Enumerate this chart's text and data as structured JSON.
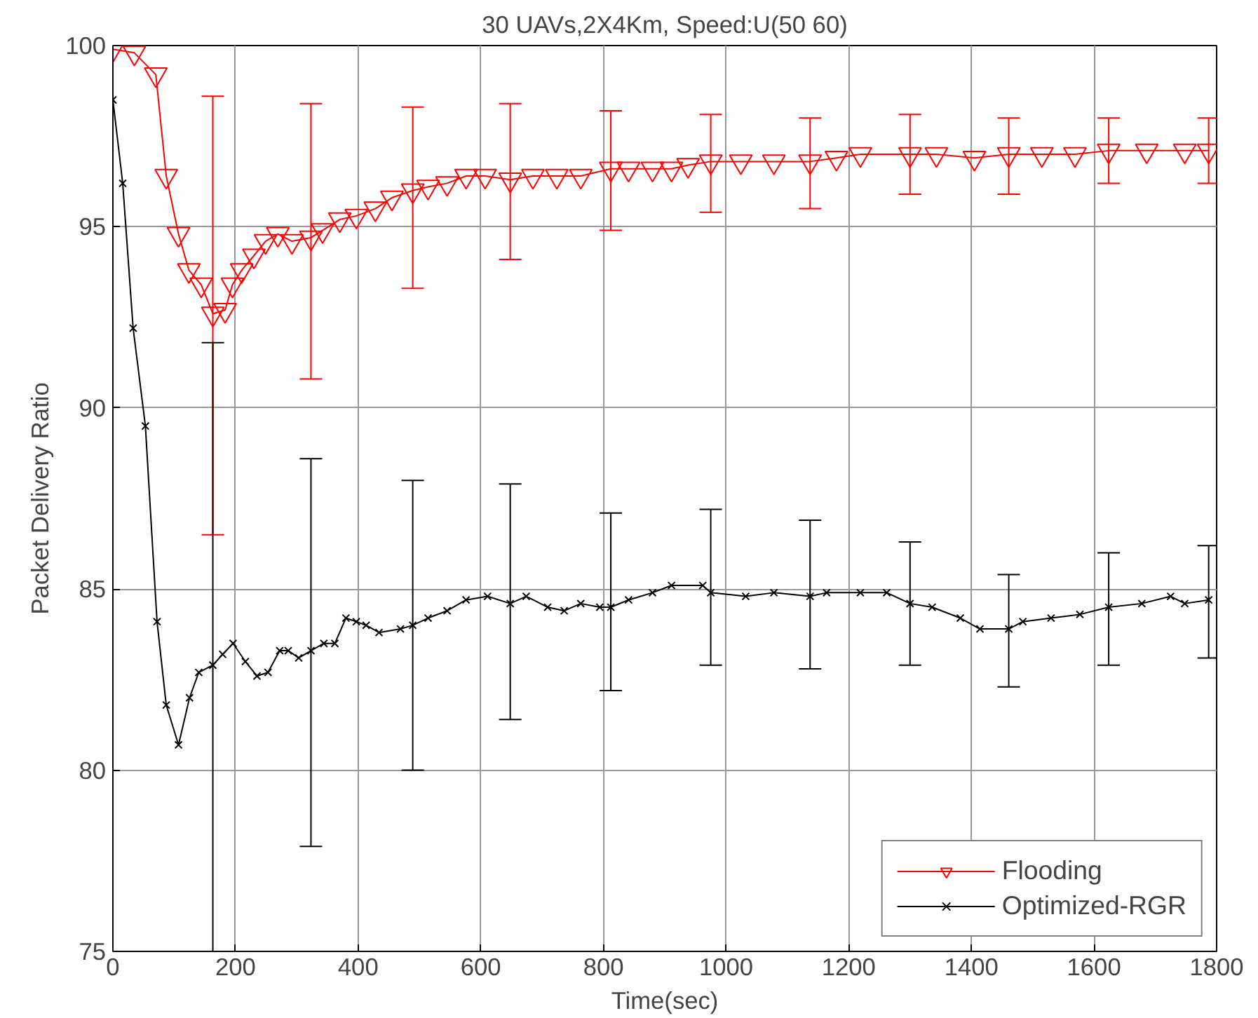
{
  "chart_data": {
    "type": "line",
    "title": "30 UAVs,2X4Km, Speed:U(50 60)",
    "xlabel": "Time(sec)",
    "ylabel": "Packet Delivery Ratio",
    "xlim": [
      0,
      1800
    ],
    "xticks": [
      0,
      200,
      400,
      600,
      800,
      1000,
      1200,
      1400,
      1600,
      1800
    ],
    "ylim": [
      75,
      100
    ],
    "yticks": [
      75,
      80,
      85,
      90,
      95,
      100
    ],
    "grid": true,
    "legend": "bottom right",
    "series": [
      {
        "name": "Flooding",
        "color": "#ff0000",
        "marker": "triangle",
        "x": [
          0,
          35,
          70,
          87,
          107,
          124,
          144,
          163,
          183,
          195,
          210,
          230,
          249,
          269,
          292,
          323,
          342,
          370,
          397,
          428,
          455,
          489,
          514,
          545,
          576,
          607,
          648,
          685,
          724,
          763,
          812,
          841,
          880,
          911,
          938,
          975,
          1024,
          1078,
          1137,
          1180,
          1219,
          1300,
          1343,
          1405,
          1461,
          1515,
          1569,
          1624,
          1686,
          1748,
          1787
        ],
        "values": [
          99.9,
          99.8,
          99.2,
          96.4,
          94.8,
          93.8,
          93.4,
          92.6,
          92.7,
          93.4,
          93.8,
          94.2,
          94.6,
          94.8,
          94.6,
          94.7,
          94.9,
          95.2,
          95.3,
          95.5,
          95.8,
          96.0,
          96.1,
          96.2,
          96.4,
          96.4,
          96.3,
          96.4,
          96.4,
          96.4,
          96.6,
          96.6,
          96.6,
          96.6,
          96.7,
          96.8,
          96.8,
          96.8,
          96.8,
          96.9,
          97.0,
          97.0,
          97.0,
          96.9,
          97.0,
          97.0,
          97.0,
          97.1,
          97.1,
          97.1,
          97.1
        ],
        "errors": [
          null,
          null,
          null,
          null,
          null,
          null,
          null,
          [
            86.5,
            98.6
          ],
          null,
          null,
          null,
          null,
          null,
          null,
          null,
          [
            90.8,
            98.4
          ],
          null,
          null,
          null,
          null,
          null,
          [
            93.3,
            98.3
          ],
          null,
          null,
          null,
          null,
          [
            94.1,
            98.4
          ],
          null,
          null,
          null,
          [
            94.9,
            98.2
          ],
          null,
          null,
          null,
          null,
          [
            95.4,
            98.1
          ],
          null,
          null,
          [
            95.5,
            98.0
          ],
          null,
          null,
          [
            95.9,
            98.1
          ],
          null,
          null,
          [
            95.9,
            98.0
          ],
          null,
          null,
          [
            96.2,
            98.0
          ],
          null,
          null,
          [
            96.2,
            98.0
          ]
        ]
      },
      {
        "name": "Optimized-RGR",
        "color": "#000000",
        "marker": "cross",
        "x": [
          0,
          16,
          33,
          53,
          72,
          87,
          107,
          125,
          140,
          163,
          179,
          196,
          216,
          235,
          253,
          272,
          286,
          303,
          323,
          344,
          362,
          380,
          397,
          413,
          434,
          469,
          489,
          514,
          545,
          576,
          611,
          648,
          674,
          709,
          736,
          763,
          794,
          812,
          841,
          880,
          911,
          962,
          975,
          1032,
          1078,
          1137,
          1164,
          1219,
          1262,
          1300,
          1336,
          1382,
          1414,
          1461,
          1484,
          1530,
          1577,
          1624,
          1678,
          1725,
          1748,
          1787
        ],
        "values": [
          98.5,
          96.2,
          92.2,
          89.5,
          84.1,
          81.8,
          80.7,
          82.0,
          82.7,
          82.9,
          83.2,
          83.5,
          83.0,
          82.6,
          82.7,
          83.3,
          83.3,
          83.1,
          83.3,
          83.5,
          83.5,
          84.2,
          84.1,
          84.0,
          83.8,
          83.9,
          84.0,
          84.2,
          84.4,
          84.7,
          84.8,
          84.6,
          84.8,
          84.5,
          84.4,
          84.6,
          84.5,
          84.5,
          84.7,
          84.9,
          85.1,
          85.1,
          84.9,
          84.8,
          84.9,
          84.8,
          84.9,
          84.9,
          84.9,
          84.6,
          84.5,
          84.2,
          83.9,
          83.9,
          84.1,
          84.2,
          84.3,
          84.5,
          84.6,
          84.8,
          84.6,
          84.7
        ],
        "errors": [
          null,
          null,
          null,
          null,
          null,
          null,
          null,
          null,
          null,
          [
            75,
            91.8
          ],
          null,
          null,
          null,
          null,
          null,
          null,
          null,
          null,
          [
            77.9,
            88.6
          ],
          null,
          null,
          null,
          null,
          null,
          null,
          null,
          [
            80.0,
            88.0
          ],
          null,
          null,
          null,
          null,
          [
            81.4,
            87.9
          ],
          null,
          null,
          null,
          null,
          null,
          [
            82.2,
            87.1
          ],
          null,
          null,
          null,
          null,
          [
            82.9,
            87.2
          ],
          null,
          null,
          [
            82.8,
            86.9
          ],
          null,
          null,
          null,
          [
            82.9,
            86.3
          ],
          null,
          null,
          null,
          [
            82.3,
            85.4
          ],
          null,
          null,
          null,
          [
            82.9,
            86.0
          ],
          null,
          null,
          null,
          [
            83.1,
            86.2
          ]
        ]
      }
    ]
  }
}
